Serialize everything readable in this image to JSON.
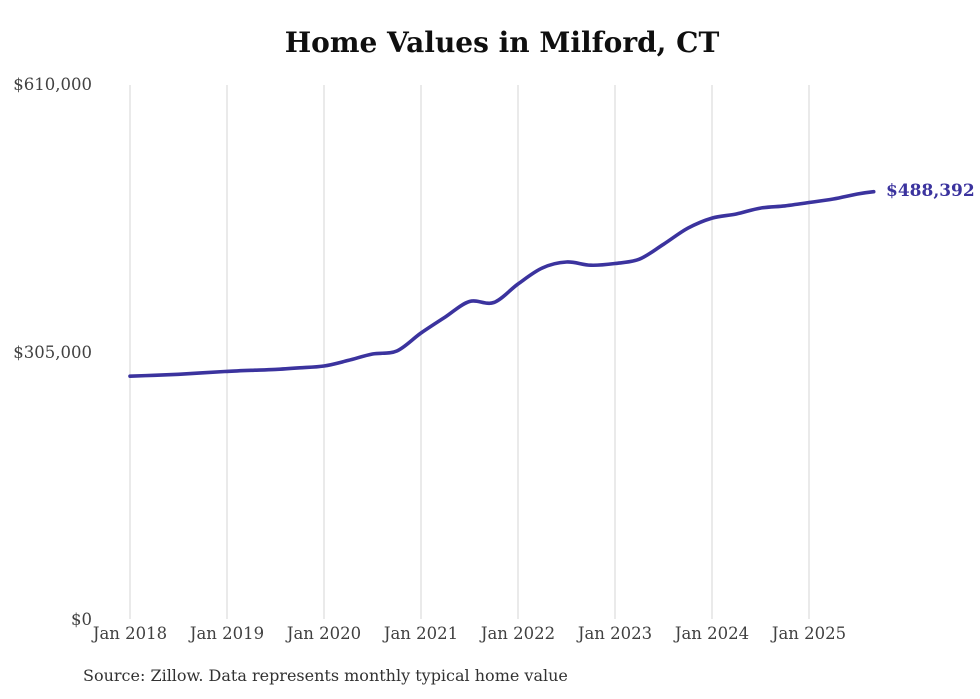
{
  "title": "Home Values in Milford, CT",
  "source_note": "Source: Zillow. Data represents monthly typical home value",
  "colors": {
    "line": "#3b339e",
    "end_label_text": "#3b339e",
    "grid": "#d4d4d4",
    "axis_text": "#414141",
    "title_text": "#0f0f0f",
    "source_text": "#323232",
    "background": "#ffffff"
  },
  "chart_data": {
    "type": "line",
    "title": "Home Values in Milford, CT",
    "xlabel": "",
    "ylabel": "",
    "ylim": [
      0,
      610000
    ],
    "grid": "vertical-only",
    "legend": "none",
    "x_tick_labels": [
      "Jan 2018",
      "Jan 2019",
      "Jan 2020",
      "Jan 2021",
      "Jan 2022",
      "Jan 2023",
      "Jan 2024",
      "Jan 2025"
    ],
    "y_ticks": [
      {
        "label": "$0",
        "value": 0
      },
      {
        "label": "$305,000",
        "value": 305000
      },
      {
        "label": "$610,000",
        "value": 610000
      }
    ],
    "series": [
      {
        "name": "Monthly typical home value",
        "points": [
          {
            "date": "2018-01",
            "value": 278000
          },
          {
            "date": "2018-04",
            "value": 279000
          },
          {
            "date": "2018-07",
            "value": 280200
          },
          {
            "date": "2018-10",
            "value": 281800
          },
          {
            "date": "2019-01",
            "value": 283500
          },
          {
            "date": "2019-04",
            "value": 284700
          },
          {
            "date": "2019-07",
            "value": 285700
          },
          {
            "date": "2019-10",
            "value": 287500
          },
          {
            "date": "2020-01",
            "value": 289600
          },
          {
            "date": "2020-04",
            "value": 296000
          },
          {
            "date": "2020-07",
            "value": 303300
          },
          {
            "date": "2020-10",
            "value": 306700
          },
          {
            "date": "2021-01",
            "value": 327200
          },
          {
            "date": "2021-04",
            "value": 345500
          },
          {
            "date": "2021-07",
            "value": 363200
          },
          {
            "date": "2021-10",
            "value": 362000
          },
          {
            "date": "2022-01",
            "value": 383100
          },
          {
            "date": "2022-04",
            "value": 401400
          },
          {
            "date": "2022-07",
            "value": 408200
          },
          {
            "date": "2022-10",
            "value": 404500
          },
          {
            "date": "2023-01",
            "value": 406500
          },
          {
            "date": "2023-04",
            "value": 411400
          },
          {
            "date": "2023-07",
            "value": 428400
          },
          {
            "date": "2023-10",
            "value": 446700
          },
          {
            "date": "2024-01",
            "value": 458200
          },
          {
            "date": "2024-04",
            "value": 462900
          },
          {
            "date": "2024-07",
            "value": 469700
          },
          {
            "date": "2024-10",
            "value": 472200
          },
          {
            "date": "2025-01",
            "value": 476000
          },
          {
            "date": "2025-04",
            "value": 480000
          },
          {
            "date": "2025-07",
            "value": 485700
          },
          {
            "date": "2025-09",
            "value": 488392
          }
        ]
      }
    ],
    "last_point": {
      "date": "2025-09",
      "value": 488392,
      "label": "$488,392"
    }
  }
}
